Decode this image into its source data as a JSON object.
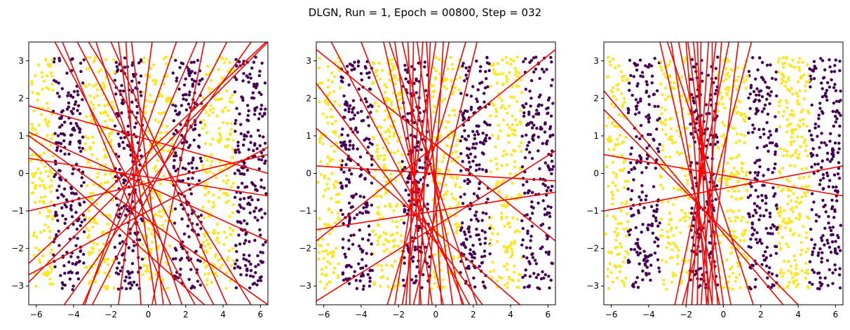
{
  "figure": {
    "title": "DLGN, Run = 1, Epoch = 00800, Step = 032"
  },
  "colors": {
    "class_0": "#440154",
    "class_1": "#fde725",
    "boundary": "#ff0000",
    "axes": "#000000"
  },
  "chart_data": [
    {
      "type": "scatter",
      "title": "",
      "xlabel": "",
      "ylabel": "",
      "xlim": [
        -6.4,
        6.4
      ],
      "ylim": [
        -3.5,
        3.5
      ],
      "xticks": [
        -6,
        -4,
        -2,
        0,
        2,
        4,
        6
      ],
      "yticks": [
        -3,
        -2,
        -1,
        0,
        1,
        2,
        3
      ],
      "grid": false,
      "legend": "none",
      "point_classes": "vertical bands of width ~1.5 alternating by x",
      "band_edges": [
        -6.3,
        -5.1,
        -3.4,
        -1.8,
        -0.3,
        1.3,
        2.9,
        4.6,
        6.3
      ],
      "band_classes": [
        1,
        0,
        1,
        0,
        1,
        0,
        1,
        0
      ],
      "lines": [
        [
          [
            -6.4,
            1.8
          ],
          [
            6.4,
            0.0
          ]
        ],
        [
          [
            -6.4,
            1.1
          ],
          [
            6.4,
            -1.8
          ]
        ],
        [
          [
            -6.4,
            0.4
          ],
          [
            6.4,
            -0.6
          ]
        ],
        [
          [
            -6.4,
            -2.9
          ],
          [
            6.4,
            3.5
          ]
        ],
        [
          [
            -6.4,
            -2.7
          ],
          [
            6.4,
            0.7
          ]
        ],
        [
          [
            -6.4,
            0.7
          ],
          [
            3.0,
            -3.5
          ]
        ],
        [
          [
            -6.4,
            1.0
          ],
          [
            6.4,
            -3.5
          ]
        ],
        [
          [
            -5.0,
            3.5
          ],
          [
            2.5,
            -3.5
          ]
        ],
        [
          [
            -3.8,
            3.5
          ],
          [
            3.5,
            -3.5
          ]
        ],
        [
          [
            -2.8,
            3.5
          ],
          [
            1.8,
            -3.5
          ]
        ],
        [
          [
            -1.6,
            3.5
          ],
          [
            0.4,
            -3.5
          ]
        ],
        [
          [
            -0.9,
            3.5
          ],
          [
            0.8,
            -3.5
          ]
        ],
        [
          [
            0.2,
            3.5
          ],
          [
            -1.6,
            -3.5
          ]
        ],
        [
          [
            1.5,
            3.5
          ],
          [
            -3.4,
            -3.5
          ]
        ],
        [
          [
            2.6,
            3.5
          ],
          [
            -3.5,
            -3.5
          ]
        ],
        [
          [
            5.5,
            3.5
          ],
          [
            -4.5,
            -3.5
          ]
        ],
        [
          [
            6.3,
            3.5
          ],
          [
            -6.4,
            -2.4
          ]
        ],
        [
          [
            -3.2,
            3.5
          ],
          [
            5.5,
            -3.5
          ]
        ],
        [
          [
            -2.0,
            3.5
          ],
          [
            4.2,
            -3.5
          ]
        ],
        [
          [
            -4.6,
            3.5
          ],
          [
            1.2,
            -3.5
          ]
        ],
        [
          [
            -1.2,
            3.5
          ],
          [
            -0.4,
            -3.5
          ]
        ],
        [
          [
            4.2,
            3.5
          ],
          [
            -3.0,
            -3.5
          ]
        ],
        [
          [
            -6.4,
            -1.0
          ],
          [
            6.4,
            0.5
          ]
        ],
        [
          [
            3.0,
            3.5
          ],
          [
            0.2,
            -3.5
          ]
        ]
      ]
    },
    {
      "type": "scatter",
      "title": "",
      "xlabel": "",
      "ylabel": "",
      "xlim": [
        -6.4,
        6.4
      ],
      "ylim": [
        -3.5,
        3.5
      ],
      "xticks": [
        -6,
        -4,
        -2,
        0,
        2,
        4,
        6
      ],
      "yticks": [
        -3,
        -2,
        -1,
        0,
        1,
        2,
        3
      ],
      "grid": false,
      "legend": "none",
      "point_classes": "vertical bands of width ~1.5 alternating by x",
      "band_edges": [
        -6.3,
        -5.1,
        -3.4,
        -1.8,
        -0.3,
        1.3,
        2.9,
        4.6,
        6.3
      ],
      "band_classes": [
        1,
        0,
        1,
        0,
        1,
        0,
        1,
        0
      ],
      "lines": [
        [
          [
            -6.4,
            0.2
          ],
          [
            6.4,
            -0.2
          ]
        ],
        [
          [
            -6.4,
            3.3
          ],
          [
            6.4,
            -1.8
          ]
        ],
        [
          [
            -6.4,
            2.4
          ],
          [
            2.5,
            -3.5
          ]
        ],
        [
          [
            -6.4,
            -1.8
          ],
          [
            6.4,
            3.3
          ]
        ],
        [
          [
            -6.4,
            -3.4
          ],
          [
            6.4,
            0.6
          ]
        ],
        [
          [
            -6.4,
            -1.5
          ],
          [
            6.4,
            -0.5
          ]
        ],
        [
          [
            -5.6,
            3.5
          ],
          [
            1.8,
            -3.5
          ]
        ],
        [
          [
            -4.0,
            3.5
          ],
          [
            1.5,
            -3.5
          ]
        ],
        [
          [
            -2.8,
            3.5
          ],
          [
            0.4,
            -3.5
          ]
        ],
        [
          [
            -2.2,
            3.5
          ],
          [
            -0.2,
            -3.5
          ]
        ],
        [
          [
            -1.5,
            3.5
          ],
          [
            -0.8,
            -3.5
          ]
        ],
        [
          [
            -0.7,
            3.5
          ],
          [
            -1.6,
            -3.5
          ]
        ],
        [
          [
            0.0,
            3.5
          ],
          [
            -2.2,
            -3.5
          ]
        ],
        [
          [
            0.7,
            3.5
          ],
          [
            -1.8,
            -3.5
          ]
        ],
        [
          [
            1.6,
            3.5
          ],
          [
            -2.6,
            -3.5
          ]
        ],
        [
          [
            -1.0,
            3.5
          ],
          [
            0.9,
            -3.5
          ]
        ],
        [
          [
            -1.8,
            3.5
          ],
          [
            1.4,
            -3.5
          ]
        ],
        [
          [
            -0.3,
            3.5
          ],
          [
            -0.9,
            -3.5
          ]
        ],
        [
          [
            -6.4,
            1.2
          ],
          [
            4.5,
            -3.5
          ]
        ],
        [
          [
            2.2,
            3.5
          ],
          [
            -1.2,
            -3.5
          ]
        ],
        [
          [
            -2.5,
            3.5
          ],
          [
            2.2,
            -3.5
          ]
        ],
        [
          [
            0.4,
            3.5
          ],
          [
            -0.4,
            -3.5
          ]
        ],
        [
          [
            -1.2,
            3.5
          ],
          [
            -1.4,
            -3.5
          ]
        ],
        [
          [
            -0.5,
            3.5
          ],
          [
            0.3,
            -3.5
          ]
        ]
      ]
    },
    {
      "type": "scatter",
      "title": "",
      "xlabel": "",
      "ylabel": "",
      "xlim": [
        -6.4,
        6.4
      ],
      "ylim": [
        -3.5,
        3.5
      ],
      "xticks": [
        -6,
        -4,
        -2,
        0,
        2,
        4,
        6
      ],
      "yticks": [
        -3,
        -2,
        -1,
        0,
        1,
        2,
        3
      ],
      "grid": false,
      "legend": "none",
      "point_classes": "vertical bands of width ~1.5 alternating by x",
      "band_edges": [
        -6.3,
        -5.1,
        -3.4,
        -1.8,
        -0.3,
        1.3,
        2.9,
        4.6,
        6.3
      ],
      "band_classes": [
        1,
        0,
        1,
        0,
        1,
        0,
        1,
        0
      ],
      "lines": [
        [
          [
            -6.4,
            0.5
          ],
          [
            6.4,
            -0.6
          ]
        ],
        [
          [
            -6.4,
            -1.0
          ],
          [
            6.4,
            0.2
          ]
        ],
        [
          [
            -6.4,
            2.2
          ],
          [
            3.2,
            -3.5
          ]
        ],
        [
          [
            -6.4,
            1.7
          ],
          [
            4.0,
            -3.5
          ]
        ],
        [
          [
            -3.4,
            3.5
          ],
          [
            -0.2,
            -3.5
          ]
        ],
        [
          [
            -2.8,
            3.5
          ],
          [
            -0.6,
            -3.5
          ]
        ],
        [
          [
            -2.0,
            3.5
          ],
          [
            -0.9,
            -3.5
          ]
        ],
        [
          [
            -1.6,
            3.5
          ],
          [
            -0.3,
            -3.5
          ]
        ],
        [
          [
            -1.2,
            3.5
          ],
          [
            -1.4,
            -3.5
          ]
        ],
        [
          [
            -0.8,
            3.5
          ],
          [
            -1.7,
            -3.5
          ]
        ],
        [
          [
            -0.4,
            3.5
          ],
          [
            -2.0,
            -3.5
          ]
        ],
        [
          [
            -0.1,
            3.5
          ],
          [
            -1.2,
            -3.5
          ]
        ],
        [
          [
            0.3,
            3.5
          ],
          [
            -2.6,
            -3.5
          ]
        ],
        [
          [
            -2.4,
            3.5
          ],
          [
            0.4,
            -3.5
          ]
        ],
        [
          [
            -1.9,
            3.5
          ],
          [
            0.0,
            -3.5
          ]
        ],
        [
          [
            1.5,
            3.5
          ],
          [
            -2.2,
            -3.5
          ]
        ],
        [
          [
            -3.0,
            3.5
          ],
          [
            1.6,
            -3.5
          ]
        ],
        [
          [
            -1.4,
            3.5
          ],
          [
            -0.8,
            -3.5
          ]
        ],
        [
          [
            -0.6,
            3.5
          ],
          [
            -0.6,
            -3.5
          ]
        ],
        [
          [
            0.8,
            3.5
          ],
          [
            -0.9,
            -3.5
          ]
        ]
      ]
    }
  ]
}
